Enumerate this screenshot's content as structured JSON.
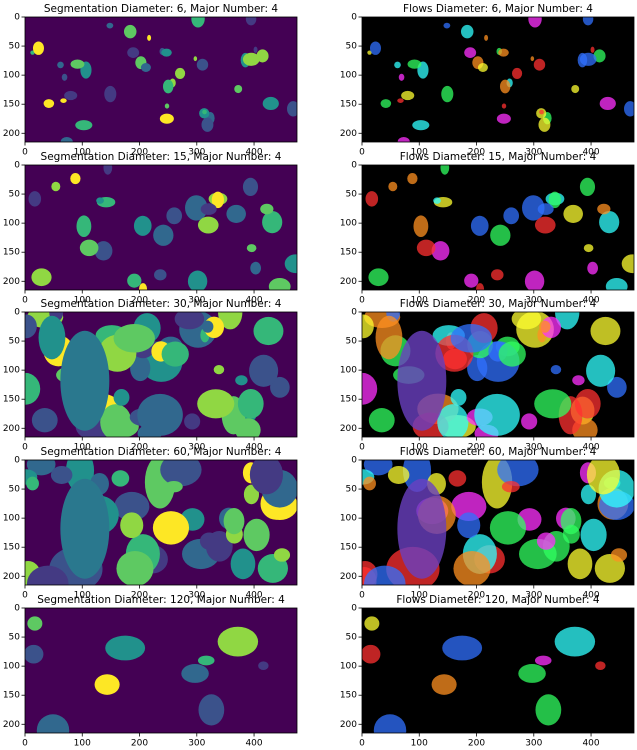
{
  "chart_data": [
    {
      "type": "image",
      "title": "Segmentation Diameter: 6, Major Number: 4",
      "cmap": "viridis",
      "xlim": [
        0,
        475
      ],
      "ylim": [
        215,
        0
      ],
      "xticks": [
        0,
        100,
        200,
        300,
        400
      ],
      "yticks": [
        0,
        50,
        100,
        150,
        200
      ]
    },
    {
      "type": "image",
      "title": "Flows Diameter: 6, Major Number: 4",
      "cmap": "flows",
      "xlim": [
        0,
        475
      ],
      "ylim": [
        215,
        0
      ],
      "xticks": [
        0,
        100,
        200,
        300,
        400
      ],
      "yticks": [
        0,
        50,
        100,
        150,
        200
      ]
    },
    {
      "type": "image",
      "title": "Segmentation Diameter: 15, Major Number: 4",
      "cmap": "viridis",
      "xlim": [
        0,
        475
      ],
      "ylim": [
        215,
        0
      ],
      "xticks": [
        0,
        100,
        200,
        300,
        400
      ],
      "yticks": [
        0,
        50,
        100,
        150,
        200
      ]
    },
    {
      "type": "image",
      "title": "Flows Diameter: 15, Major Number: 4",
      "cmap": "flows",
      "xlim": [
        0,
        475
      ],
      "ylim": [
        215,
        0
      ],
      "xticks": [
        0,
        100,
        200,
        300,
        400
      ],
      "yticks": [
        0,
        50,
        100,
        150,
        200
      ]
    },
    {
      "type": "image",
      "title": "Segmentation Diameter: 30, Major Number: 4",
      "cmap": "viridis",
      "xlim": [
        0,
        475
      ],
      "ylim": [
        215,
        0
      ],
      "xticks": [
        0,
        100,
        200,
        300,
        400
      ],
      "yticks": [
        0,
        50,
        100,
        150,
        200
      ]
    },
    {
      "type": "image",
      "title": "Flows Diameter: 30, Major Number: 4",
      "cmap": "flows",
      "xlim": [
        0,
        475
      ],
      "ylim": [
        215,
        0
      ],
      "xticks": [
        0,
        100,
        200,
        300,
        400
      ],
      "yticks": [
        0,
        50,
        100,
        150,
        200
      ]
    },
    {
      "type": "image",
      "title": "Segmentation Diameter: 60, Major Number: 4",
      "cmap": "viridis",
      "xlim": [
        0,
        475
      ],
      "ylim": [
        215,
        0
      ],
      "xticks": [
        0,
        100,
        200,
        300,
        400
      ],
      "yticks": [
        0,
        50,
        100,
        150,
        200
      ]
    },
    {
      "type": "image",
      "title": "Flows Diameter: 60, Major Number: 4",
      "cmap": "flows",
      "xlim": [
        0,
        475
      ],
      "ylim": [
        215,
        0
      ],
      "xticks": [
        0,
        100,
        200,
        300,
        400
      ],
      "yticks": [
        0,
        50,
        100,
        150,
        200
      ]
    },
    {
      "type": "image",
      "title": "Segmentation Diameter: 120, Major Number: 4",
      "cmap": "viridis",
      "xlim": [
        0,
        475
      ],
      "ylim": [
        215,
        0
      ],
      "xticks": [
        0,
        100,
        200,
        300,
        400
      ],
      "yticks": [
        0,
        50,
        100,
        150,
        200
      ]
    },
    {
      "type": "image",
      "title": "Flows Diameter: 120, Major Number: 4",
      "cmap": "flows",
      "xlim": [
        0,
        475
      ],
      "ylim": [
        215,
        0
      ],
      "xticks": [
        0,
        100,
        200,
        300,
        400
      ],
      "yticks": [
        0,
        50,
        100,
        150,
        200
      ]
    }
  ]
}
